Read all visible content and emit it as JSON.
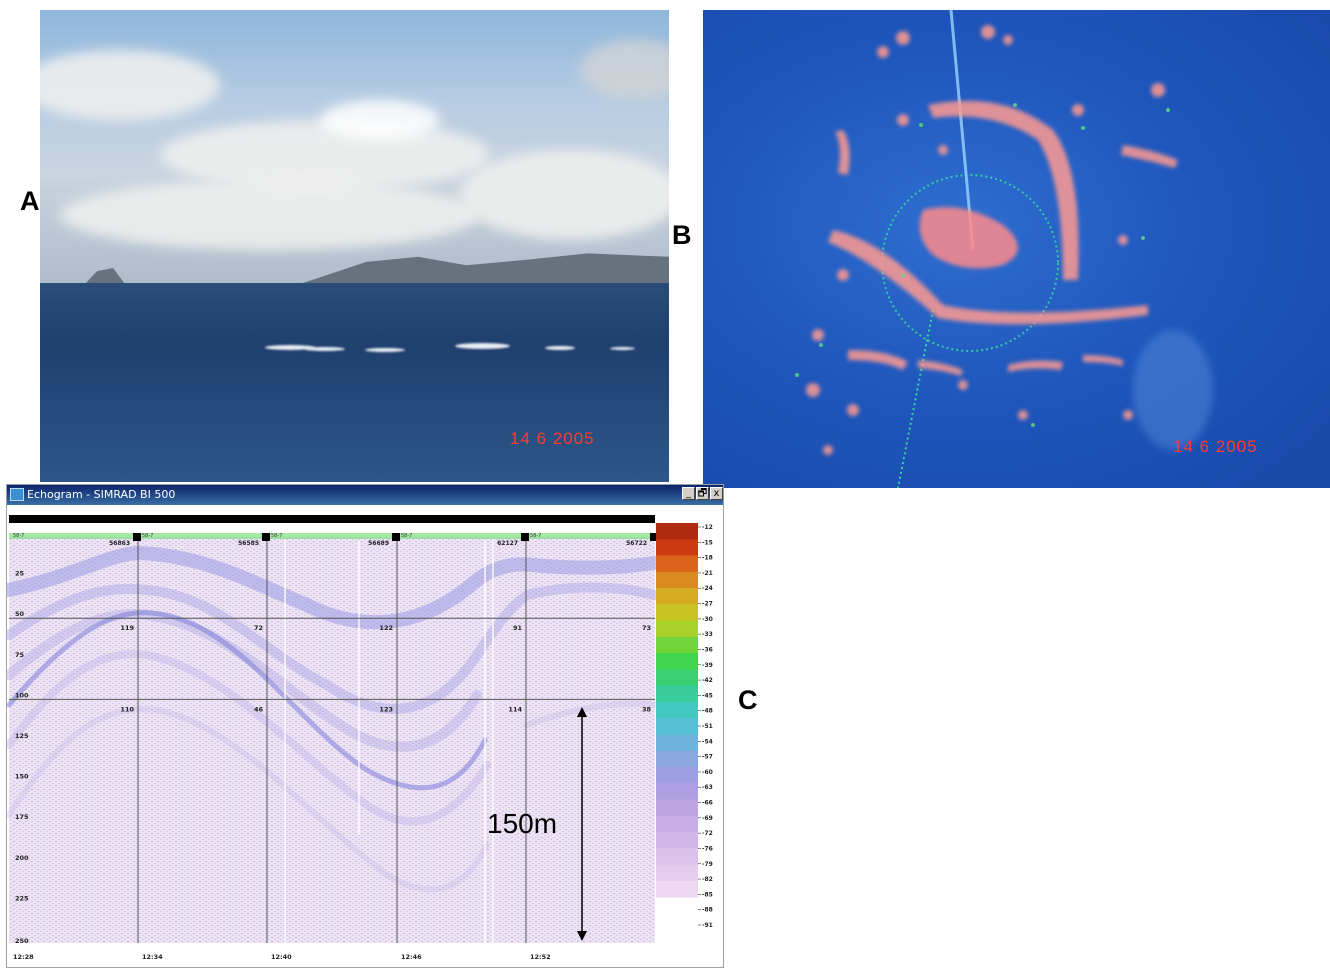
{
  "labels": {
    "a": "A",
    "b": "B",
    "c": "C"
  },
  "photo_a": {
    "date_stamp": "14  6 2005"
  },
  "sonar_b": {
    "date_stamp": "14  6 2005"
  },
  "echogram": {
    "window_title": "Echogram - SIMRAD BI 500",
    "buttons": {
      "minimize": "_",
      "restore": "🗗",
      "close": "x"
    },
    "pings": [
      "56863",
      "56585",
      "56689",
      "62127",
      "56722"
    ],
    "ping_prefix": "58-7",
    "depth_ticks": [
      "25",
      "50",
      "75",
      "100",
      "125",
      "150",
      "175",
      "200",
      "225",
      "250"
    ],
    "time_ticks": [
      "12:28",
      "12:34",
      "12:40",
      "12:46",
      "12:52"
    ],
    "cell_values": {
      "row1": [
        "119",
        "72",
        "122",
        "91",
        "73"
      ],
      "row2": [
        "110",
        "46",
        "123",
        "114",
        "38"
      ]
    },
    "color_scale": [
      "-12",
      "-15",
      "-18",
      "-21",
      "-24",
      "-27",
      "-30",
      "-33",
      "-36",
      "-39",
      "-42",
      "-45",
      "-48",
      "-51",
      "-54",
      "-57",
      "-60",
      "-63",
      "-66",
      "-69",
      "-72",
      "-76",
      "-79",
      "-82",
      "-85",
      "-88",
      "-91"
    ],
    "scale_colors": [
      "#b02a10",
      "#cc3a12",
      "#d9641a",
      "#d98a20",
      "#d5ab22",
      "#c9c422",
      "#a8d22a",
      "#6fd53a",
      "#3fd44d",
      "#39cf72",
      "#3acd9c",
      "#41c9c1",
      "#56c1d6",
      "#6eb3dc",
      "#8aa7de",
      "#9d9ee0",
      "#ae9fe2",
      "#bda5e4",
      "#c9ace6",
      "#d3b6e9",
      "#dcc1ec",
      "#e5ccef",
      "#eed8f3"
    ],
    "annotation": "150m"
  }
}
